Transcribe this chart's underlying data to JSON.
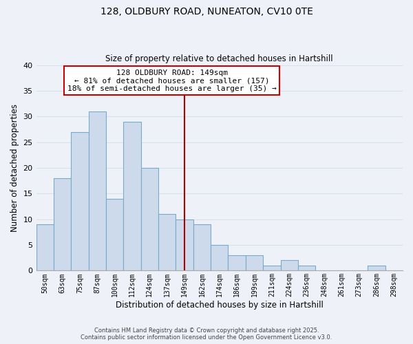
{
  "title1": "128, OLDBURY ROAD, NUNEATON, CV10 0TE",
  "title2": "Size of property relative to detached houses in Hartshill",
  "xlabel": "Distribution of detached houses by size in Hartshill",
  "ylabel": "Number of detached properties",
  "bar_labels": [
    "50sqm",
    "63sqm",
    "75sqm",
    "87sqm",
    "100sqm",
    "112sqm",
    "124sqm",
    "137sqm",
    "149sqm",
    "162sqm",
    "174sqm",
    "186sqm",
    "199sqm",
    "211sqm",
    "224sqm",
    "236sqm",
    "248sqm",
    "261sqm",
    "273sqm",
    "286sqm",
    "298sqm"
  ],
  "bar_values": [
    9,
    18,
    27,
    31,
    14,
    29,
    20,
    11,
    10,
    9,
    5,
    3,
    3,
    1,
    2,
    1,
    0,
    0,
    0,
    1,
    0
  ],
  "bar_color": "#ccdaeb",
  "bar_edge_color": "#7aaaca",
  "vline_x_idx": 8,
  "vline_color": "#aa0000",
  "annotation_title": "128 OLDBURY ROAD: 149sqm",
  "annotation_line1": "← 81% of detached houses are smaller (157)",
  "annotation_line2": "18% of semi-detached houses are larger (35) →",
  "annotation_box_color": "#ffffff",
  "annotation_box_edge": "#cc0000",
  "ylim": [
    0,
    40
  ],
  "yticks": [
    0,
    5,
    10,
    15,
    20,
    25,
    30,
    35,
    40
  ],
  "footer1": "Contains HM Land Registry data © Crown copyright and database right 2025.",
  "footer2": "Contains public sector information licensed under the Open Government Licence v3.0.",
  "bg_color": "#eef2f8",
  "grid_color": "#d8e0ed",
  "plot_bg_color": "#eef2f8"
}
